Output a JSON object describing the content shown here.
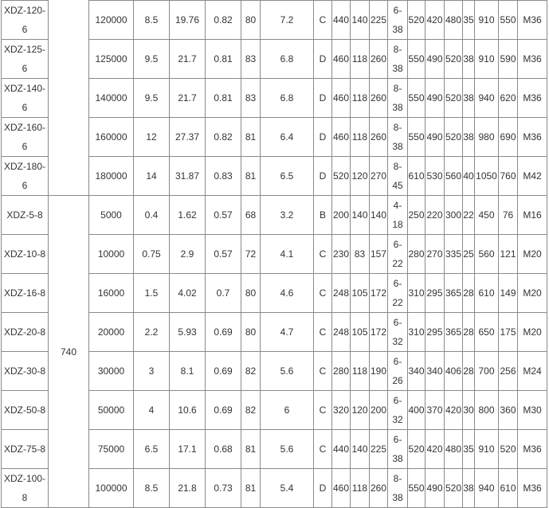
{
  "speed_group": "740",
  "rows": [
    [
      "XDZ-120-6",
      "120000",
      "8.5",
      "19.76",
      "0.82",
      "80",
      "7.2",
      "C",
      "440",
      "140",
      "225",
      "6-38",
      "520",
      "420",
      "480",
      "35",
      "910",
      "550",
      "M36"
    ],
    [
      "XDZ-125-6",
      "125000",
      "9.5",
      "21.7",
      "0.81",
      "83",
      "6.8",
      "D",
      "460",
      "118",
      "260",
      "8-38",
      "550",
      "490",
      "520",
      "38",
      "910",
      "590",
      "M36"
    ],
    [
      "XDZ-140-6",
      "140000",
      "9.5",
      "21.7",
      "0.81",
      "83",
      "6.8",
      "D",
      "460",
      "118",
      "260",
      "8-38",
      "550",
      "490",
      "520",
      "38",
      "940",
      "620",
      "M36"
    ],
    [
      "XDZ-160-6",
      "160000",
      "12",
      "27.37",
      "0.82",
      "81",
      "6.4",
      "D",
      "460",
      "118",
      "260",
      "8-38",
      "550",
      "490",
      "520",
      "38",
      "980",
      "690",
      "M36"
    ],
    [
      "XDZ-180-6",
      "180000",
      "14",
      "31.87",
      "0.83",
      "81",
      "6.5",
      "D",
      "520",
      "120",
      "270",
      "8-45",
      "610",
      "530",
      "560",
      "40",
      "1050",
      "760",
      "M42"
    ],
    [
      "XDZ-5-8",
      "5000",
      "0.4",
      "1.62",
      "0.57",
      "68",
      "3.2",
      "B",
      "200",
      "140",
      "140",
      "4-18",
      "250",
      "220",
      "300",
      "22",
      "450",
      "76",
      "M16"
    ],
    [
      "XDZ-10-8",
      "10000",
      "0.75",
      "2.9",
      "0.57",
      "72",
      "4.1",
      "C",
      "230",
      "83",
      "157",
      "6-22",
      "280",
      "270",
      "335",
      "25",
      "560",
      "121",
      "M20"
    ],
    [
      "XDZ-16-8",
      "16000",
      "1.5",
      "4.02",
      "0.7",
      "80",
      "4.6",
      "C",
      "248",
      "105",
      "172",
      "6-22",
      "310",
      "295",
      "365",
      "28",
      "610",
      "149",
      "M20"
    ],
    [
      "XDZ-20-8",
      "20000",
      "2.2",
      "5.93",
      "0.69",
      "80",
      "4.7",
      "C",
      "248",
      "105",
      "172",
      "6-32",
      "310",
      "295",
      "365",
      "28",
      "650",
      "175",
      "M20"
    ],
    [
      "XDZ-30-8",
      "30000",
      "3",
      "8.1",
      "0.69",
      "82",
      "5.6",
      "C",
      "280",
      "118",
      "190",
      "6-26",
      "340",
      "340",
      "406",
      "28",
      "700",
      "256",
      "M24"
    ],
    [
      "XDZ-50-8",
      "50000",
      "4",
      "10.6",
      "0.69",
      "82",
      "6",
      "C",
      "320",
      "120",
      "200",
      "6-32",
      "400",
      "370",
      "420",
      "30",
      "800",
      "360",
      "M30"
    ],
    [
      "XDZ-75-8",
      "75000",
      "6.5",
      "17.1",
      "0.68",
      "81",
      "5.6",
      "C",
      "440",
      "140",
      "225",
      "6-38",
      "520",
      "420",
      "480",
      "35",
      "910",
      "520",
      "M36"
    ],
    [
      "XDZ-100-8",
      "100000",
      "8.5",
      "21.8",
      "0.73",
      "81",
      "5.4",
      "D",
      "460",
      "118",
      "260",
      "8-38",
      "550",
      "490",
      "520",
      "38",
      "940",
      "610",
      "M36"
    ]
  ]
}
